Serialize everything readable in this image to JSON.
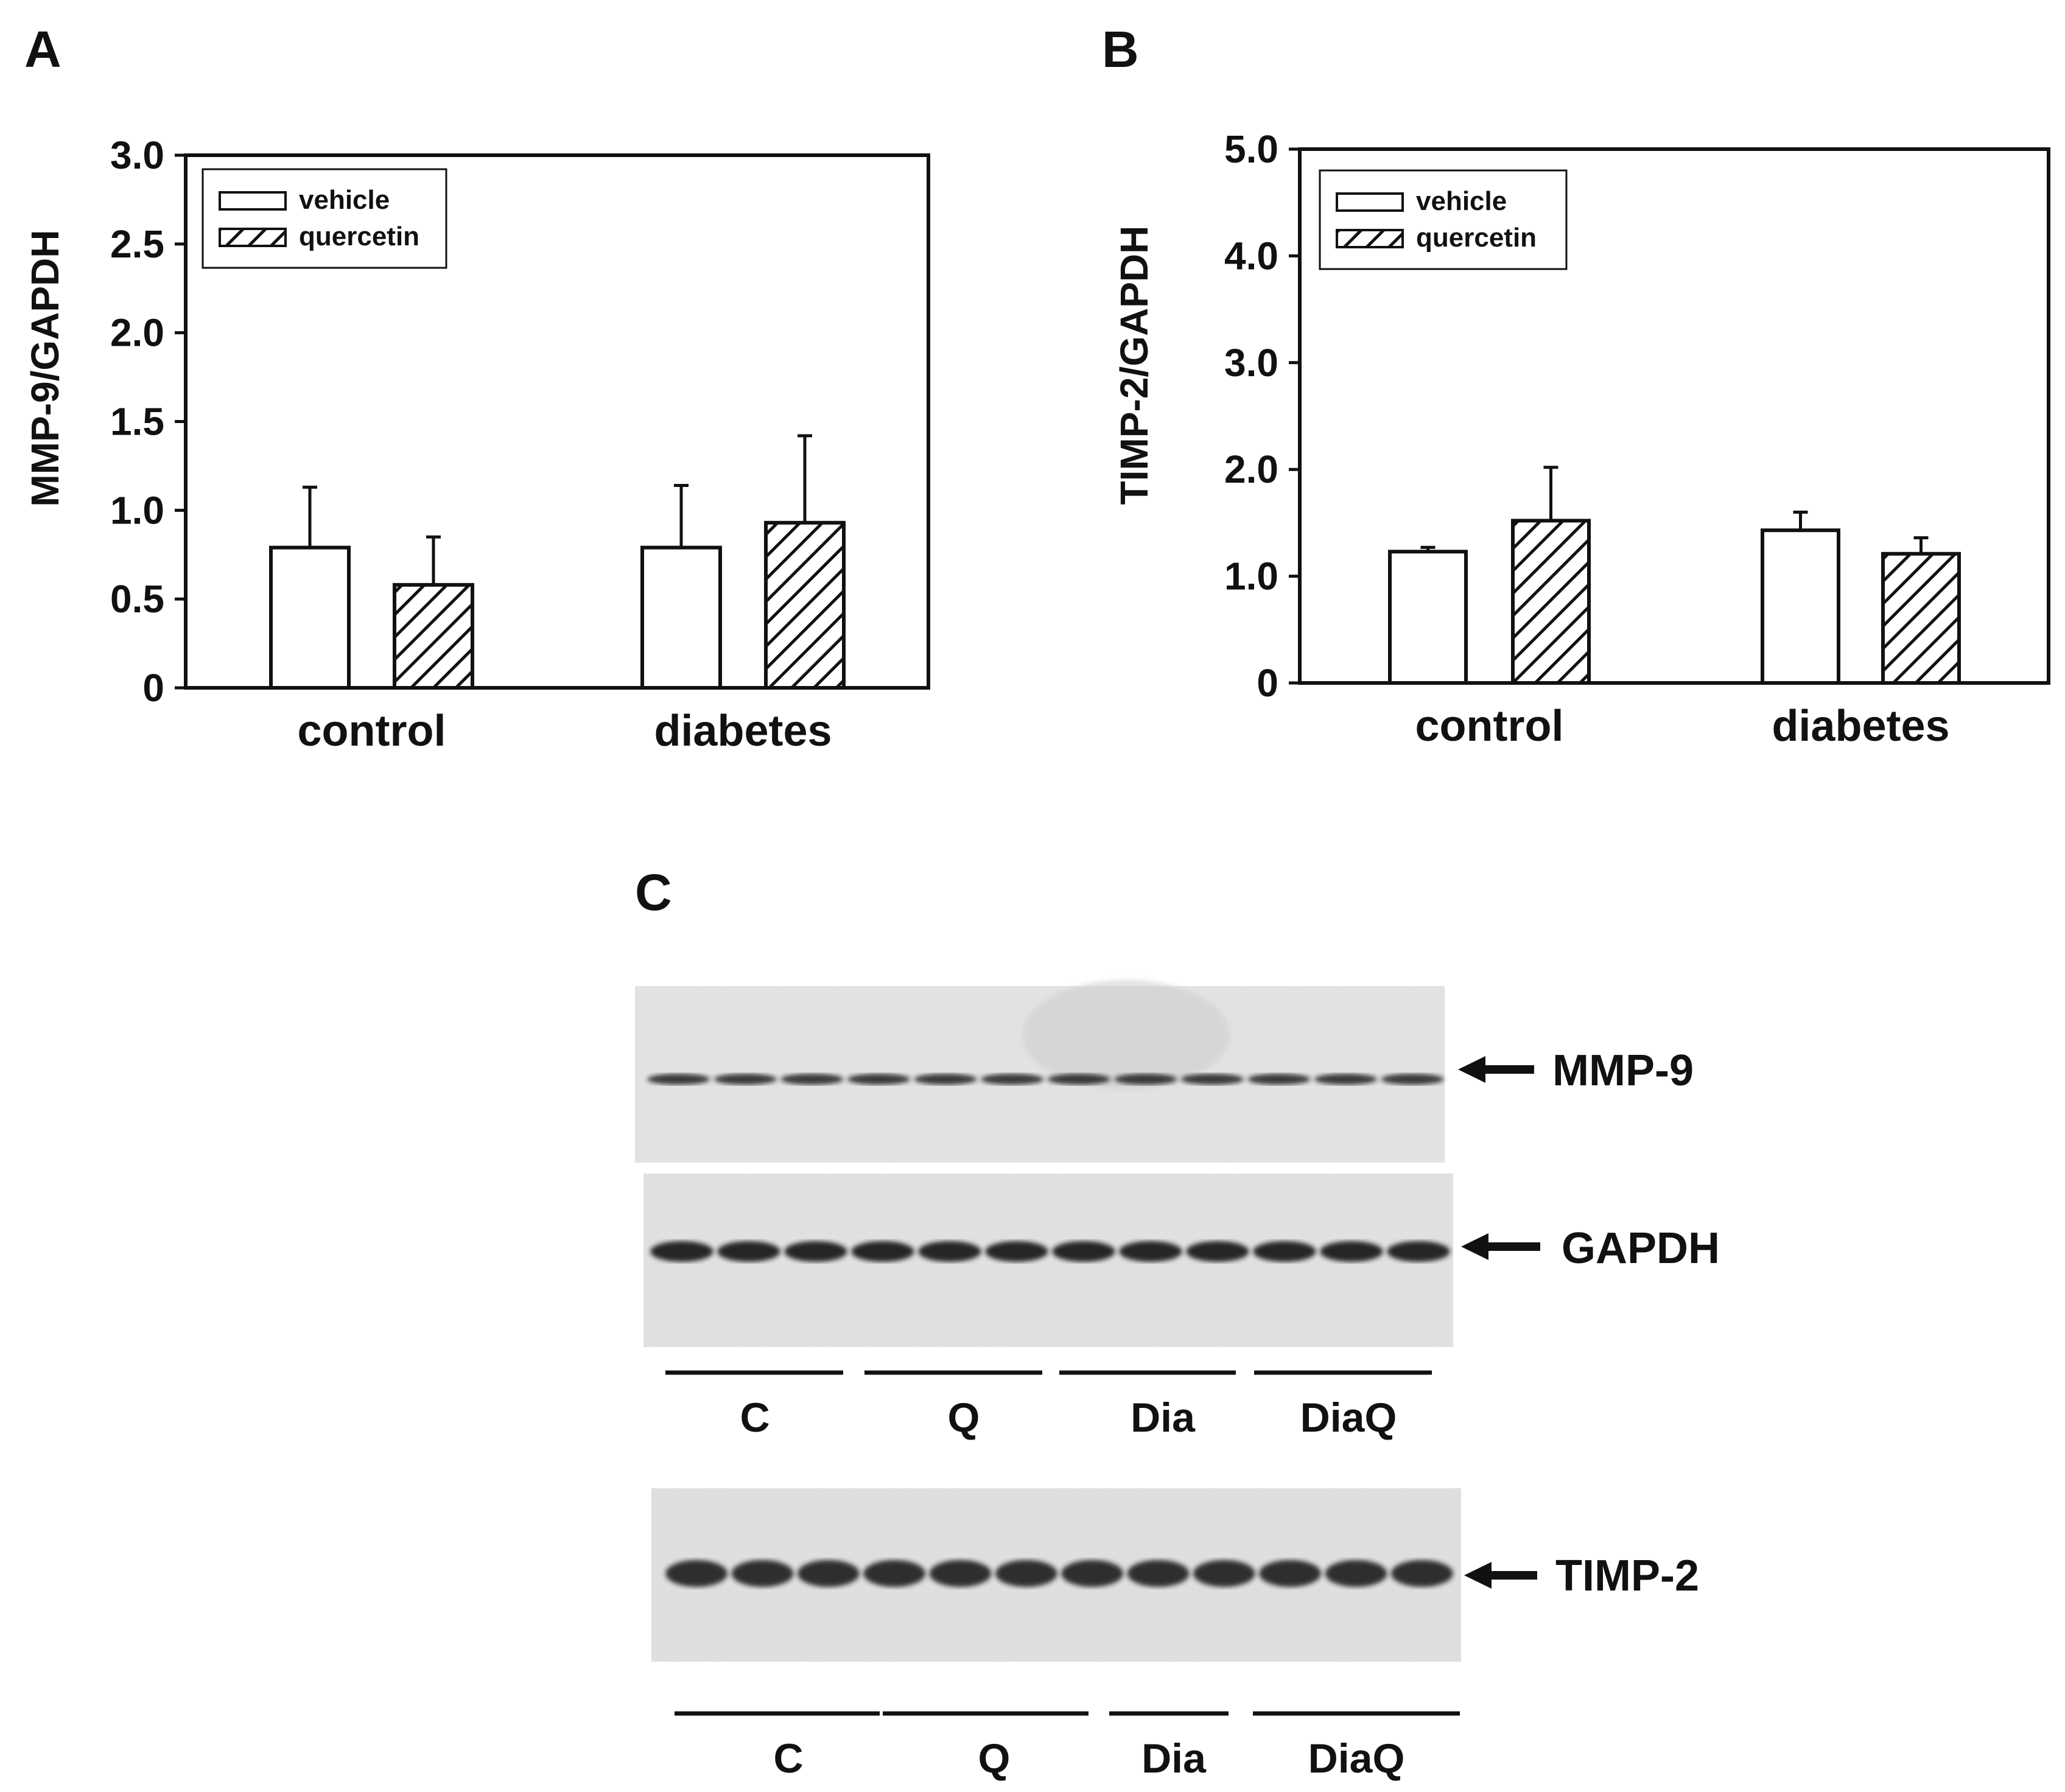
{
  "chart_data": [
    {
      "panel": "A",
      "type": "bar",
      "title": "",
      "xlabel": "",
      "ylabel": "MMP-9/GAPDH",
      "ylim": [
        0,
        3.0
      ],
      "yticks": [
        "0",
        "0.5",
        "1.0",
        "1.5",
        "2.0",
        "2.5",
        "3.0"
      ],
      "categories": [
        "control",
        "diabetes"
      ],
      "legend": [
        "vehicle",
        "quercetin"
      ],
      "legend_position": "top-left",
      "series": [
        {
          "name": "vehicle",
          "pattern": "open",
          "values": [
            0.79,
            0.79
          ],
          "errors": [
            0.34,
            0.35
          ]
        },
        {
          "name": "quercetin",
          "pattern": "hatched",
          "values": [
            0.58,
            0.93
          ],
          "errors": [
            0.27,
            0.49
          ]
        }
      ]
    },
    {
      "panel": "B",
      "type": "bar",
      "title": "",
      "xlabel": "",
      "ylabel": "TIMP-2/GAPDH",
      "ylim": [
        0,
        5.0
      ],
      "yticks": [
        "0",
        "1.0",
        "2.0",
        "3.0",
        "4.0",
        "5.0"
      ],
      "categories": [
        "control",
        "diabetes"
      ],
      "legend": [
        "vehicle",
        "quercetin"
      ],
      "legend_position": "top-left",
      "series": [
        {
          "name": "vehicle",
          "pattern": "open",
          "values": [
            1.23,
            1.43
          ],
          "errors": [
            0.04,
            0.17
          ]
        },
        {
          "name": "quercetin",
          "pattern": "hatched",
          "values": [
            1.52,
            1.21
          ],
          "errors": [
            0.5,
            0.15
          ]
        }
      ]
    }
  ],
  "blot_panel": {
    "letter": "C",
    "bands": [
      "MMP-9",
      "GAPDH",
      "TIMP-2"
    ],
    "lane_groups_top": [
      "C",
      "Q",
      "Dia",
      "DiaQ"
    ],
    "lane_groups_bottom": [
      "C",
      "Q",
      "Dia",
      "DiaQ"
    ]
  }
}
